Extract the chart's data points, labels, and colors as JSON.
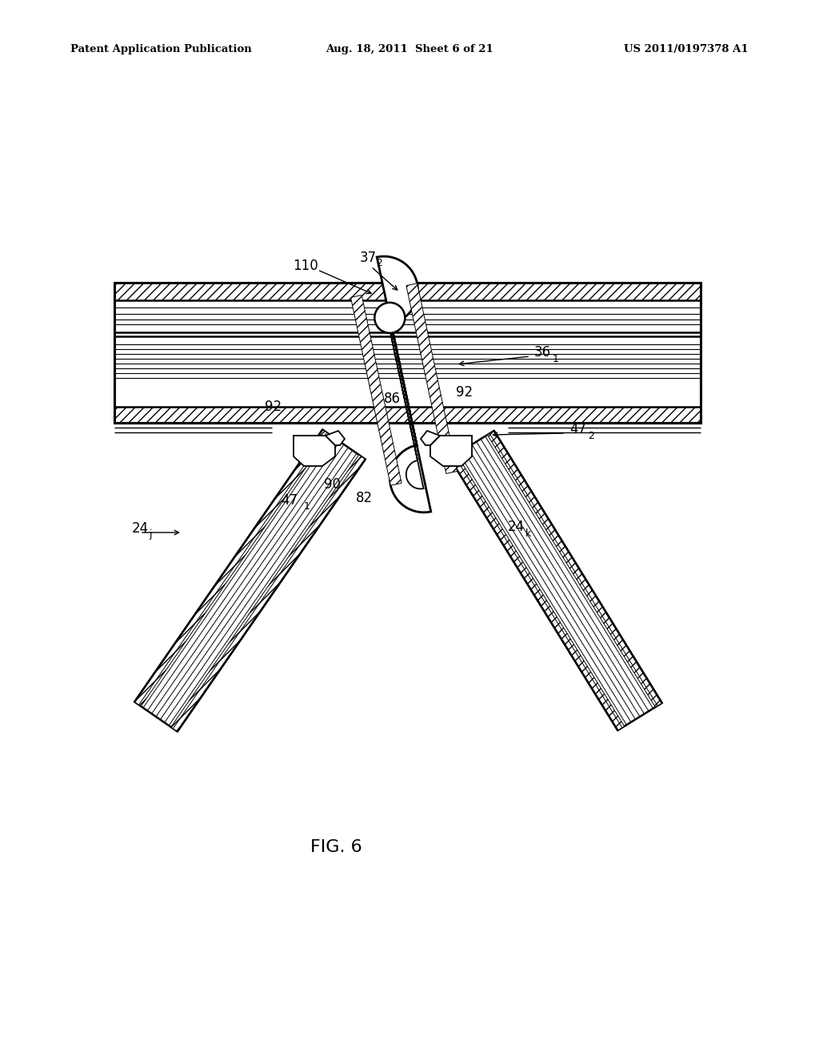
{
  "header_left": "Patent Application Publication",
  "header_mid": "Aug. 18, 2011  Sheet 6 of 21",
  "header_right": "US 2011/0197378 A1",
  "figure_label": "FIG. 6",
  "bg_color": "#ffffff"
}
